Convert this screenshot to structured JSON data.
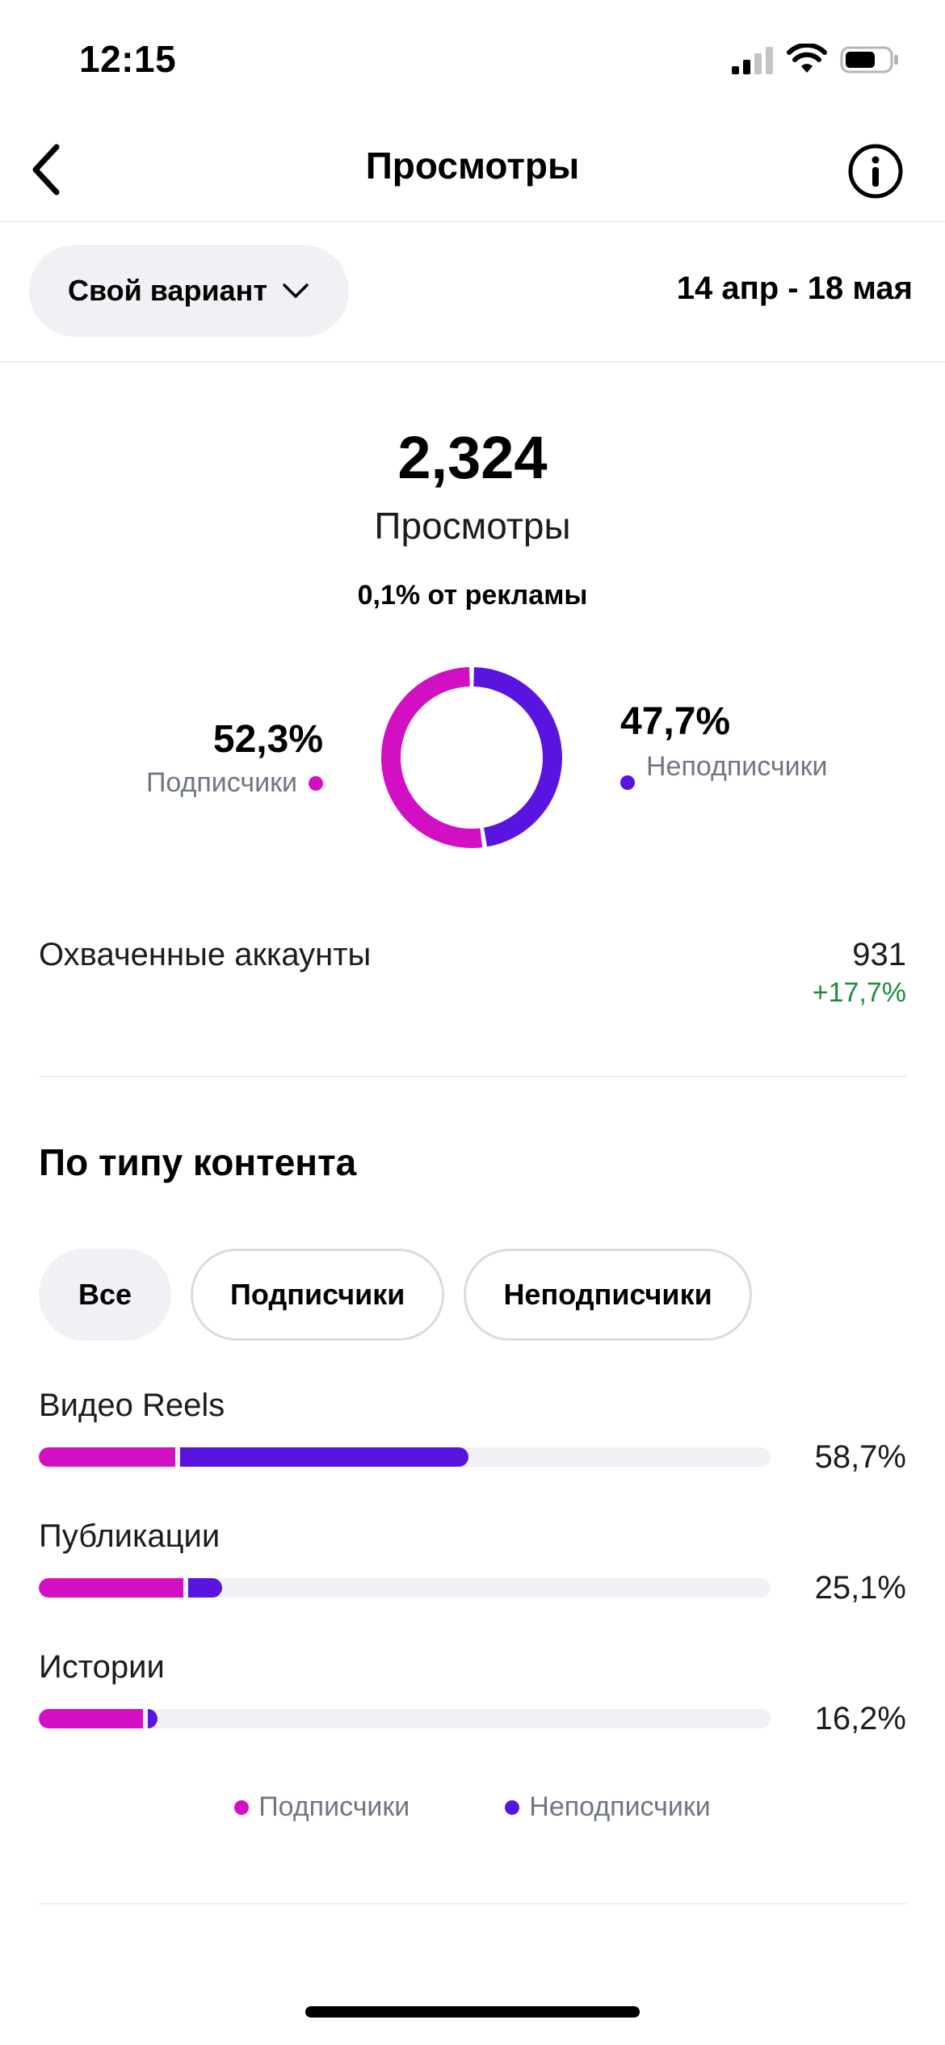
{
  "status": {
    "time": "12:15"
  },
  "header": {
    "title": "Просмотры"
  },
  "filter": {
    "period_label": "Свой вариант",
    "date_range": "14 апр - 18 мая"
  },
  "summary": {
    "total": "2,324",
    "total_label": "Просмотры",
    "ads_note": "0,1% от рекламы",
    "followers_pct": "52,3%",
    "followers_label": "Подписчики",
    "nonfollowers_pct": "47,7%",
    "nonfollowers_label": "Неподписчики",
    "followers_share": 0.523,
    "nonfollowers_share": 0.477
  },
  "reach": {
    "label": "Охваченные аккаунты",
    "value": "931",
    "change": "+17,7%"
  },
  "content_type": {
    "title": "По типу контента",
    "chips": [
      "Все",
      "Подписчики",
      "Неподписчики"
    ],
    "active_chip": 0,
    "rows": [
      {
        "label": "Видео Reels",
        "value": "58,7%",
        "total_share": 0.587,
        "followers_share": 0.186
      },
      {
        "label": "Публикации",
        "value": "25,1%",
        "total_share": 0.251,
        "followers_share": 0.198
      },
      {
        "label": "Истории",
        "value": "16,2%",
        "total_share": 0.162,
        "followers_share": 0.142
      }
    ],
    "legend": {
      "followers": "Подписчики",
      "nonfollowers": "Неподписчики"
    }
  },
  "colors": {
    "followers": "#d20fc2",
    "nonfollowers": "#5a14e0",
    "track": "#f0f1f4",
    "positive": "#1f8c3b"
  }
}
